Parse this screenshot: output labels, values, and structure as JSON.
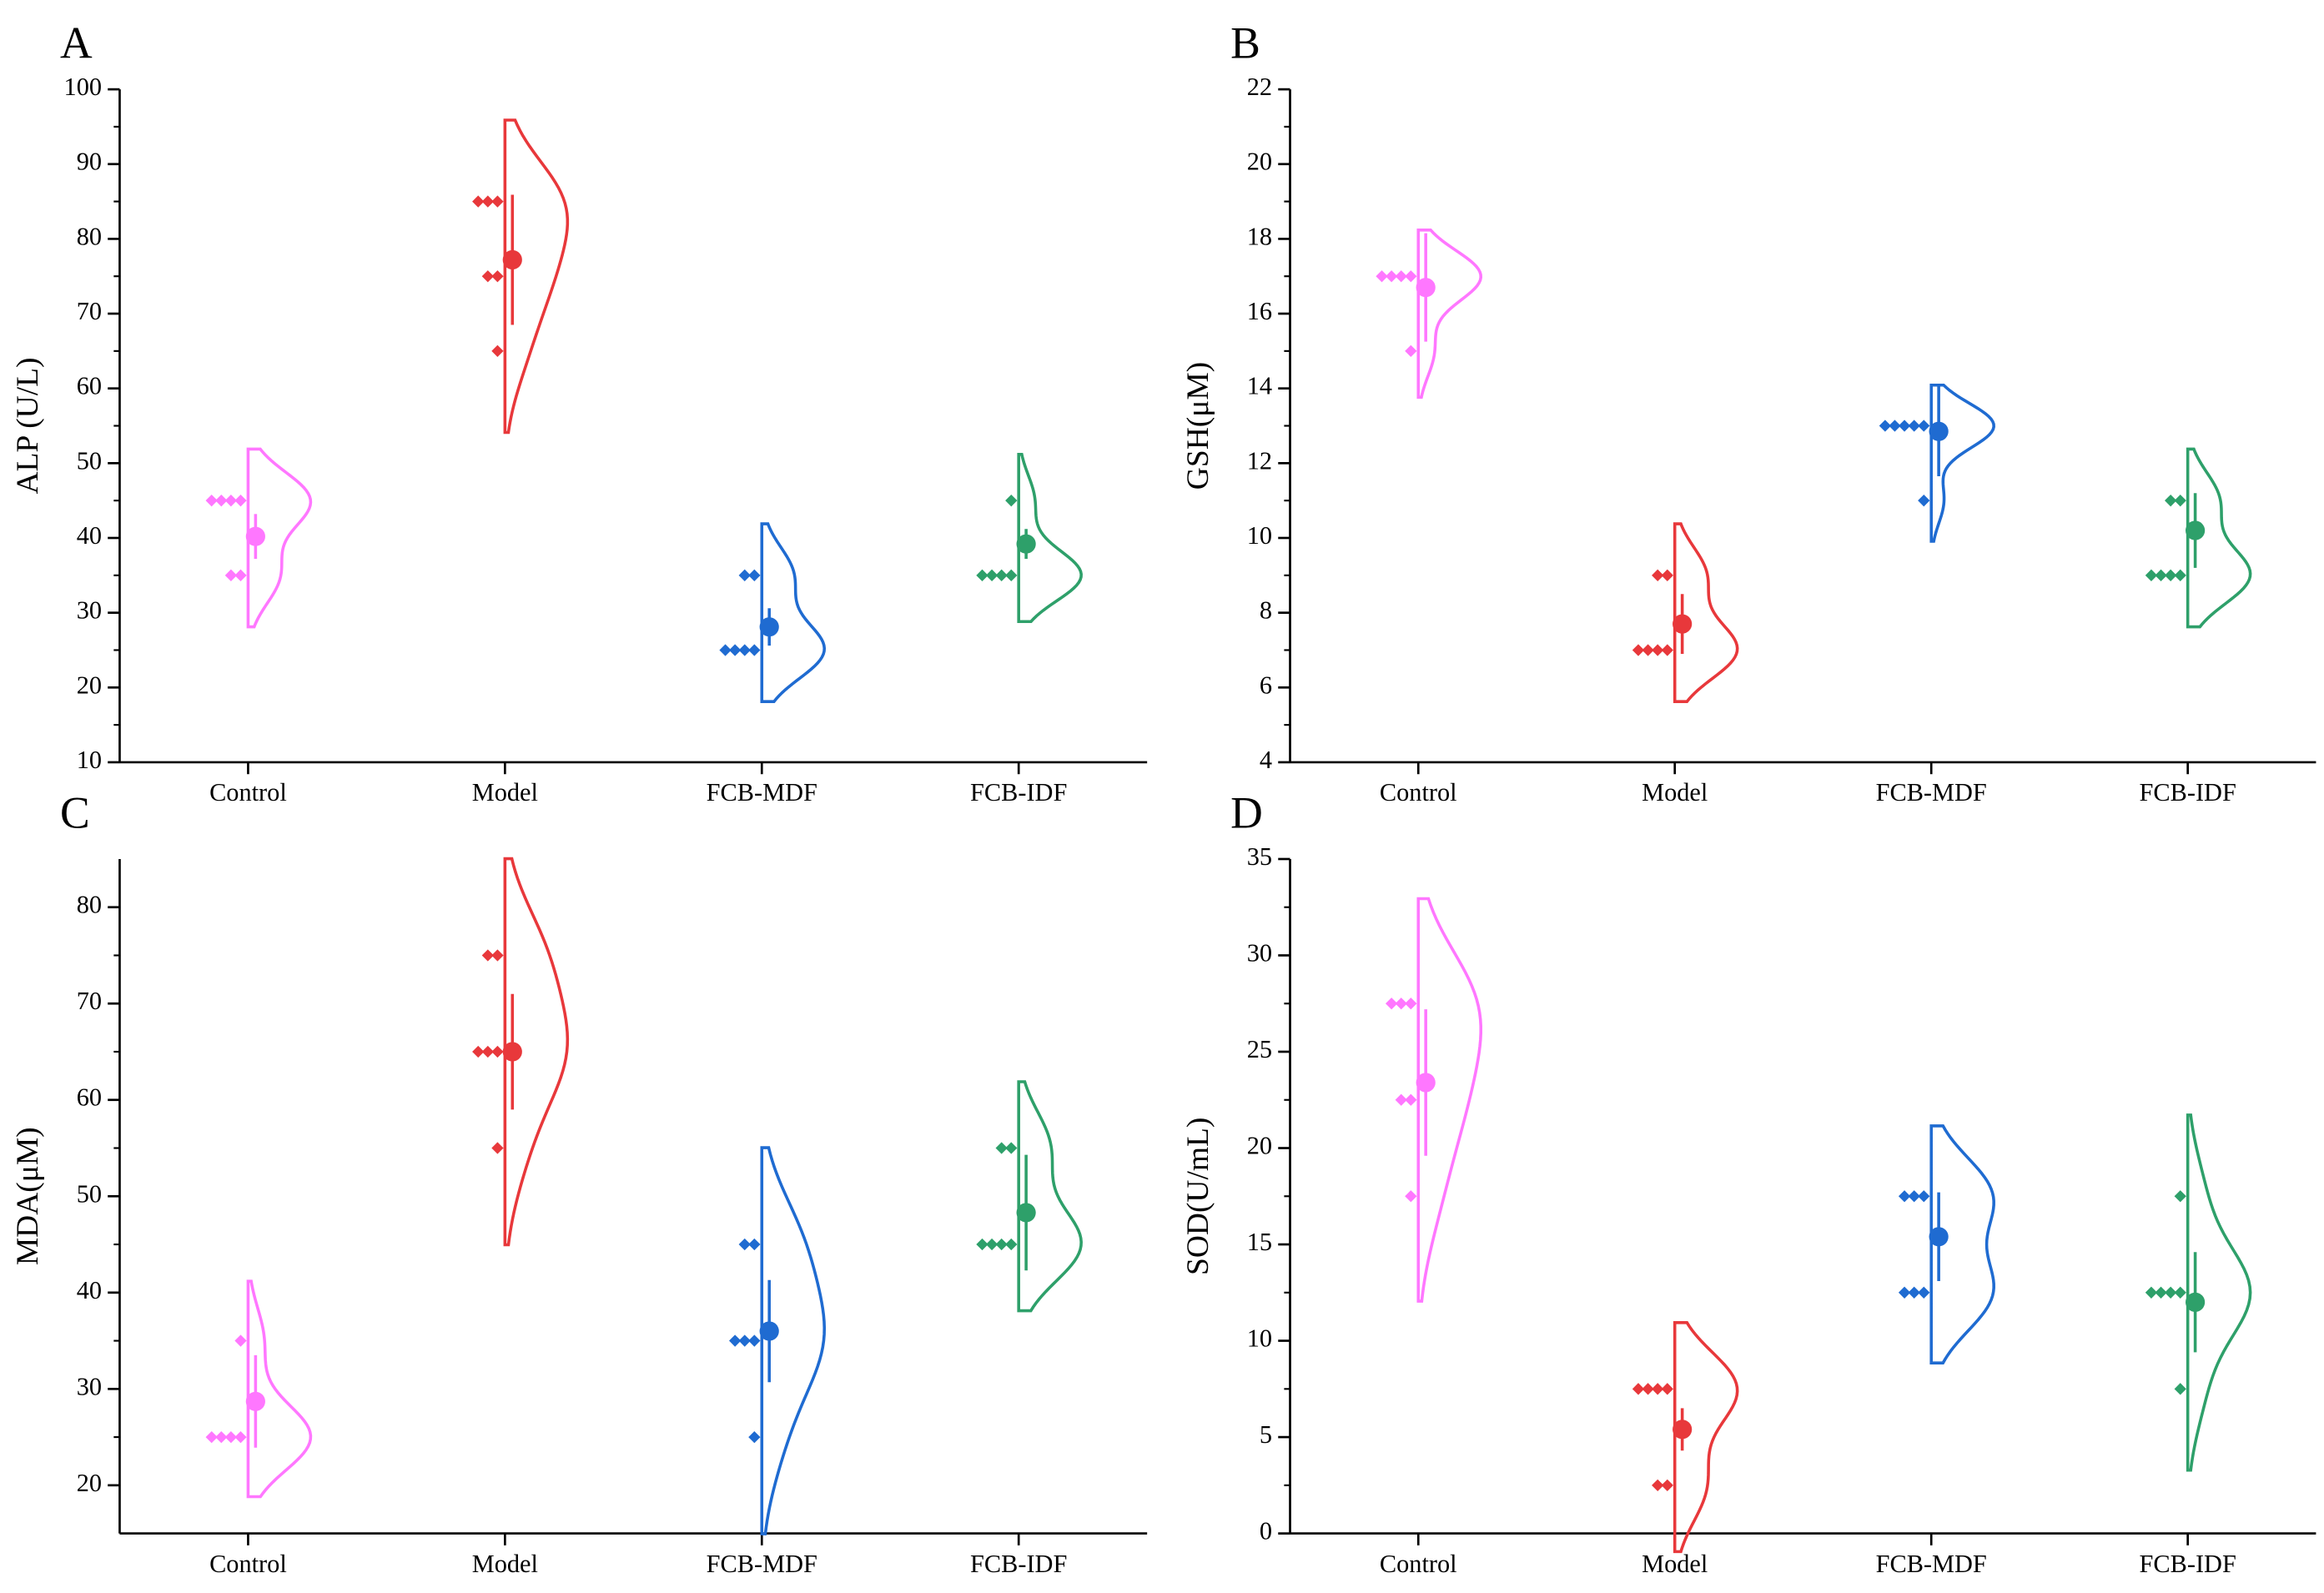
{
  "chart_data": [
    {
      "type": "violin",
      "panel_label": "A",
      "ylabel": "ALP (U/L)",
      "categories": [
        "Control",
        "Model",
        "FCB-MDF",
        "FCB-IDF"
      ],
      "colors": [
        "#ff77ff",
        "#e8383b",
        "#1f6bd1",
        "#2ea06a"
      ],
      "points": [
        [
          45,
          45,
          45,
          45,
          35,
          35
        ],
        [
          85,
          85,
          85,
          75,
          75,
          65
        ],
        [
          35,
          35,
          25,
          25,
          25,
          25
        ],
        [
          45,
          35,
          35,
          35,
          35
        ]
      ],
      "means": [
        40.2,
        77.2,
        28.1,
        39.2
      ],
      "errors": [
        3,
        8.7,
        2.5,
        2
      ],
      "ylim": [
        10,
        100
      ],
      "yticks": [
        10,
        20,
        30,
        40,
        50,
        60,
        70,
        80,
        90,
        100
      ]
    },
    {
      "type": "violin",
      "panel_label": "B",
      "ylabel": "GSH(μM)",
      "categories": [
        "Control",
        "Model",
        "FCB-MDF",
        "FCB-IDF"
      ],
      "colors": [
        "#ff77ff",
        "#e8383b",
        "#1f6bd1",
        "#2ea06a"
      ],
      "points": [
        [
          17,
          17,
          17,
          17,
          15
        ],
        [
          9,
          9,
          7,
          7,
          7,
          7
        ],
        [
          13,
          13,
          13,
          13,
          13,
          11
        ],
        [
          11,
          11,
          9,
          9,
          9,
          9
        ]
      ],
      "means": [
        16.7,
        7.7,
        12.85,
        10.2
      ],
      "errors": [
        1.45,
        0.8,
        1.2,
        1
      ],
      "ylim": [
        4,
        22
      ],
      "yticks": [
        4,
        6,
        8,
        10,
        12,
        14,
        16,
        18,
        20,
        22
      ]
    },
    {
      "type": "violin",
      "panel_label": "C",
      "ylabel": "MDA(μM)",
      "categories": [
        "Control",
        "Model",
        "FCB-MDF",
        "FCB-IDF"
      ],
      "colors": [
        "#ff77ff",
        "#e8383b",
        "#1f6bd1",
        "#2ea06a"
      ],
      "points": [
        [
          35,
          25,
          25,
          25,
          25
        ],
        [
          75,
          75,
          65,
          65,
          65,
          55
        ],
        [
          45,
          45,
          35,
          35,
          35,
          25
        ],
        [
          55,
          55,
          45,
          45,
          45,
          45
        ]
      ],
      "means": [
        28.7,
        65,
        36,
        48.3
      ],
      "errors": [
        4.8,
        6,
        5.3,
        6
      ],
      "ylim": [
        15,
        85
      ],
      "yticks": [
        20,
        30,
        40,
        50,
        60,
        70,
        80
      ]
    },
    {
      "type": "violin",
      "panel_label": "D",
      "ylabel": "SOD(U/mL)",
      "categories": [
        "Control",
        "Model",
        "FCB-MDF",
        "FCB-IDF"
      ],
      "colors": [
        "#ff77ff",
        "#e8383b",
        "#1f6bd1",
        "#2ea06a"
      ],
      "points": [
        [
          27.5,
          27.5,
          27.5,
          22.5,
          22.5,
          17.5
        ],
        [
          7.5,
          7.5,
          7.5,
          7.5,
          2.5,
          2.5
        ],
        [
          17.5,
          17.5,
          17.5,
          12.5,
          12.5,
          12.5
        ],
        [
          17.5,
          12.5,
          12.5,
          12.5,
          12.5,
          7.5
        ]
      ],
      "means": [
        23.4,
        5.4,
        15.4,
        12
      ],
      "errors": [
        3.8,
        1.1,
        2.3,
        2.6
      ],
      "ylim": [
        0,
        35
      ],
      "yticks": [
        0,
        5,
        10,
        15,
        20,
        25,
        30,
        35
      ]
    }
  ]
}
